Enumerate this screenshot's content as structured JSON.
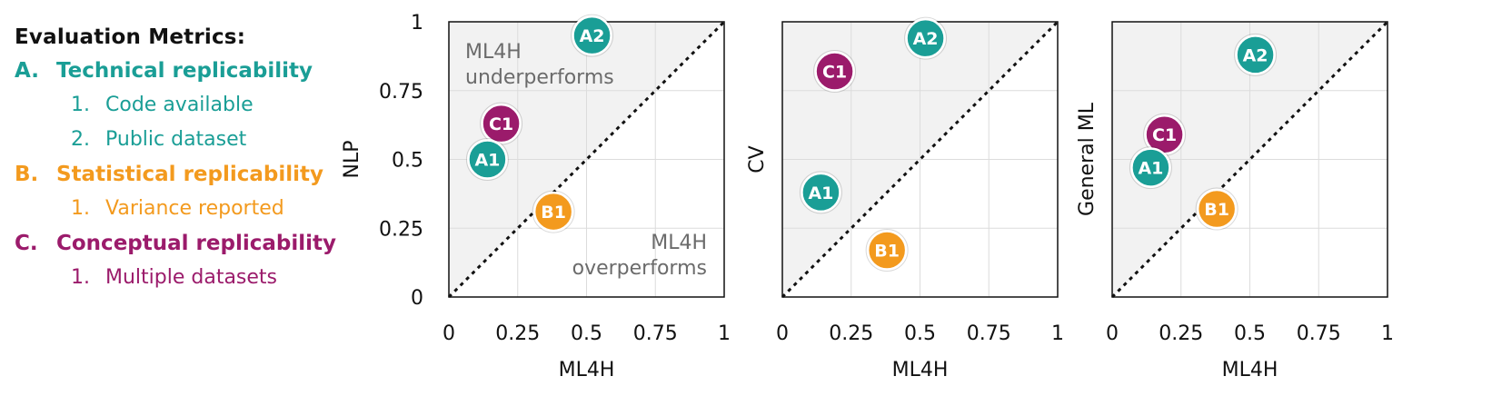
{
  "legend": {
    "title": "Evaluation Metrics:",
    "categories": [
      {
        "letter": "A.",
        "label": "Technical replicability",
        "color": "#1a9e96",
        "items": [
          {
            "num": "1.",
            "label": "Code available"
          },
          {
            "num": "2.",
            "label": "Public dataset"
          }
        ]
      },
      {
        "letter": "B.",
        "label": "Statistical replicability",
        "color": "#f39a1e",
        "items": [
          {
            "num": "1.",
            "label": "Variance reported"
          }
        ]
      },
      {
        "letter": "C.",
        "label": "Conceptual replicability",
        "color": "#9b1b6b",
        "items": [
          {
            "num": "1.",
            "label": "Multiple datasets"
          }
        ]
      }
    ]
  },
  "chart_data": [
    {
      "type": "scatter",
      "xlabel": "ML4H",
      "ylabel": "NLP",
      "xlim": [
        0,
        1
      ],
      "ylim": [
        0,
        1
      ],
      "xticks": [
        "0",
        "0.25",
        "0.5",
        "0.75",
        "1"
      ],
      "yticks": [
        "0",
        "0.25",
        "0.5",
        "0.75",
        "1"
      ],
      "grid": true,
      "diagonal": "y = x (dotted)",
      "annotations": [
        "ML4H\nunderperforms",
        "ML4H\noverperforms"
      ],
      "points": [
        {
          "label": "A2",
          "x": 0.52,
          "y": 0.95,
          "color": "#1a9e96"
        },
        {
          "label": "C1",
          "x": 0.19,
          "y": 0.63,
          "color": "#9b1b6b"
        },
        {
          "label": "A1",
          "x": 0.14,
          "y": 0.5,
          "color": "#1a9e96"
        },
        {
          "label": "B1",
          "x": 0.38,
          "y": 0.31,
          "color": "#f39a1e"
        }
      ]
    },
    {
      "type": "scatter",
      "xlabel": "ML4H",
      "ylabel": "CV",
      "xlim": [
        0,
        1
      ],
      "ylim": [
        0,
        1
      ],
      "xticks": [
        "0",
        "0.25",
        "0.5",
        "0.75",
        "1"
      ],
      "yticks": [],
      "grid": true,
      "diagonal": "y = x (dotted)",
      "points": [
        {
          "label": "A2",
          "x": 0.52,
          "y": 0.94,
          "color": "#1a9e96"
        },
        {
          "label": "C1",
          "x": 0.19,
          "y": 0.82,
          "color": "#9b1b6b"
        },
        {
          "label": "A1",
          "x": 0.14,
          "y": 0.38,
          "color": "#1a9e96"
        },
        {
          "label": "B1",
          "x": 0.38,
          "y": 0.17,
          "color": "#f39a1e"
        }
      ]
    },
    {
      "type": "scatter",
      "xlabel": "ML4H",
      "ylabel": "General ML",
      "xlim": [
        0,
        1
      ],
      "ylim": [
        0,
        1
      ],
      "xticks": [
        "0",
        "0.25",
        "0.5",
        "0.75",
        "1"
      ],
      "yticks": [],
      "grid": true,
      "diagonal": "y = x (dotted)",
      "points": [
        {
          "label": "A2",
          "x": 0.52,
          "y": 0.88,
          "color": "#1a9e96"
        },
        {
          "label": "C1",
          "x": 0.19,
          "y": 0.59,
          "color": "#9b1b6b"
        },
        {
          "label": "A1",
          "x": 0.14,
          "y": 0.47,
          "color": "#1a9e96"
        },
        {
          "label": "B1",
          "x": 0.38,
          "y": 0.32,
          "color": "#f39a1e"
        }
      ]
    }
  ]
}
